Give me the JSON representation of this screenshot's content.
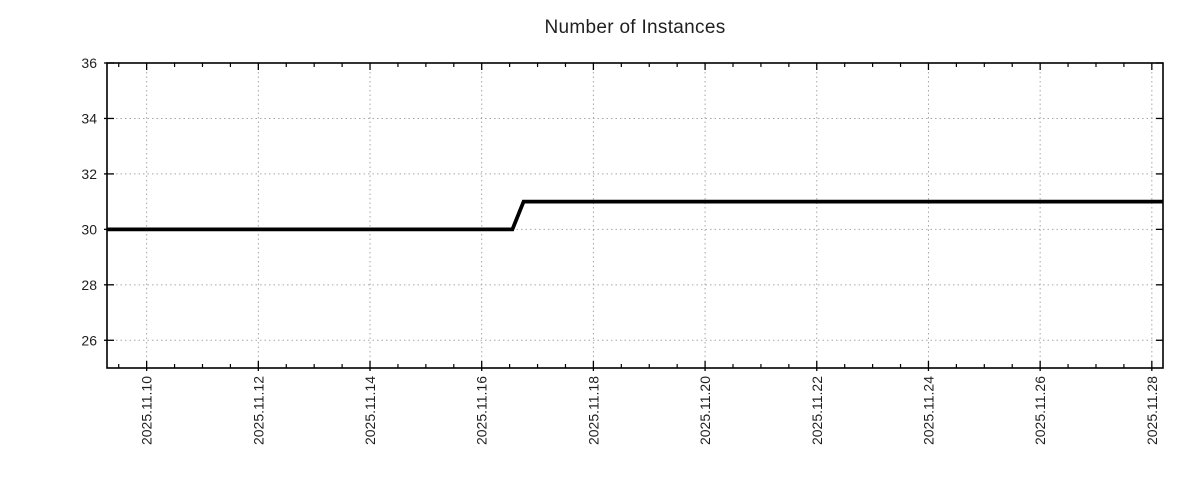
{
  "page": {
    "background": "#ffffff"
  },
  "chart_data": {
    "type": "line",
    "title": "Number of Instances",
    "xlabel": "",
    "ylabel": "",
    "legend": false,
    "grid": true,
    "grid_style": "dotted",
    "x_axis": {
      "unit": "date",
      "range_days": [
        9.29,
        28.2
      ],
      "major_ticks": [
        10,
        12,
        14,
        16,
        18,
        20,
        22,
        24,
        26,
        28
      ],
      "major_tick_labels": [
        "2025.11.10",
        "2025.11.12",
        "2025.11.14",
        "2025.11.16",
        "2025.11.18",
        "2025.11.20",
        "2025.11.22",
        "2025.11.24",
        "2025.11.26",
        "2025.11.28"
      ],
      "minor_tick_step": 0.5,
      "label_rotation_deg": -90
    },
    "y_axis": {
      "range": [
        25,
        36
      ],
      "major_ticks": [
        26,
        28,
        30,
        32,
        34,
        36
      ],
      "tick_labels": [
        "26",
        "28",
        "30",
        "32",
        "34",
        "36"
      ]
    },
    "series": [
      {
        "name": "instances",
        "color": "#000000",
        "line_width": 3.8,
        "points": [
          [
            9.29,
            30
          ],
          [
            16.55,
            30
          ],
          [
            16.75,
            31
          ],
          [
            28.2,
            31
          ]
        ]
      }
    ],
    "colors": {
      "grid": "#a6a6a6",
      "border": "#000000",
      "tick": "#000000",
      "text": "#1f1f1f",
      "title": "#1f1f1f"
    }
  }
}
